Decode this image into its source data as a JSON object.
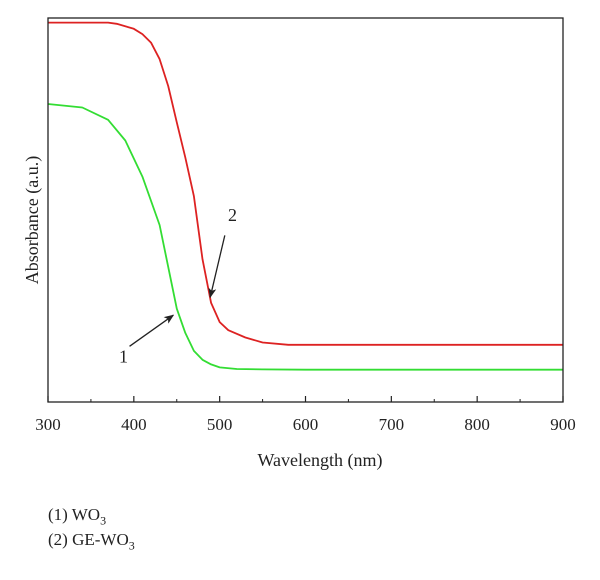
{
  "chart_data": {
    "type": "line",
    "xlabel": "Wavelength (nm)",
    "ylabel": "Absorbance (a.u.)",
    "xlim": [
      300,
      900
    ],
    "ylim": [
      0,
      1
    ],
    "x_ticks": [
      300,
      400,
      500,
      600,
      700,
      800,
      900
    ],
    "y_ticks_shown": false,
    "grid": false,
    "series": [
      {
        "name": "1",
        "color": "#33dd33",
        "points": [
          [
            300,
            0.776
          ],
          [
            340,
            0.767
          ],
          [
            370,
            0.735
          ],
          [
            390,
            0.681
          ],
          [
            410,
            0.587
          ],
          [
            430,
            0.461
          ],
          [
            450,
            0.243
          ],
          [
            460,
            0.18
          ],
          [
            470,
            0.133
          ],
          [
            480,
            0.11
          ],
          [
            490,
            0.098
          ],
          [
            500,
            0.09
          ],
          [
            520,
            0.086
          ],
          [
            550,
            0.085
          ],
          [
            600,
            0.084
          ],
          [
            700,
            0.084
          ],
          [
            800,
            0.084
          ],
          [
            900,
            0.084
          ]
        ]
      },
      {
        "name": "2",
        "color": "#dd2222",
        "points": [
          [
            300,
            0.988
          ],
          [
            370,
            0.988
          ],
          [
            380,
            0.985
          ],
          [
            400,
            0.972
          ],
          [
            410,
            0.958
          ],
          [
            420,
            0.936
          ],
          [
            430,
            0.893
          ],
          [
            440,
            0.823
          ],
          [
            450,
            0.728
          ],
          [
            460,
            0.637
          ],
          [
            470,
            0.536
          ],
          [
            480,
            0.372
          ],
          [
            490,
            0.258
          ],
          [
            500,
            0.208
          ],
          [
            510,
            0.187
          ],
          [
            530,
            0.168
          ],
          [
            550,
            0.155
          ],
          [
            580,
            0.149
          ],
          [
            600,
            0.149
          ],
          [
            700,
            0.149
          ],
          [
            800,
            0.149
          ],
          [
            900,
            0.149
          ]
        ]
      }
    ],
    "annotations": [
      {
        "label": "1",
        "text_at": [
          388,
          0.103
        ],
        "arrow_from": [
          395,
          0.145
        ],
        "arrow_to": [
          446,
          0.226
        ]
      },
      {
        "label": "2",
        "text_at": [
          515,
          0.472
        ],
        "arrow_from": [
          506,
          0.434
        ],
        "arrow_to": [
          489,
          0.273
        ]
      }
    ]
  },
  "legend": [
    {
      "prefix": "(1) WO",
      "sub": "3"
    },
    {
      "prefix": "(2) GE-WO",
      "sub": "3"
    }
  ]
}
